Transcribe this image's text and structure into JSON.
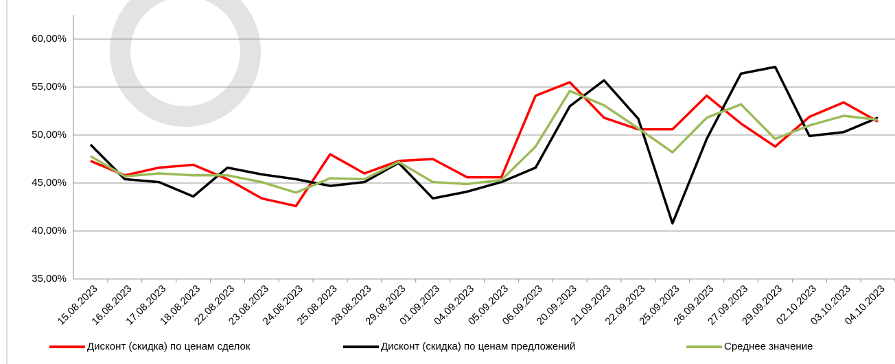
{
  "chart_data": {
    "type": "line",
    "categories": [
      "15.08.2023",
      "16.08.2023",
      "17.08.2023",
      "18.08.2023",
      "22.08.2023",
      "23.08.2023",
      "24.08.2023",
      "25.08.2023",
      "28.08.2023",
      "29.08.2023",
      "01.09.2023",
      "04.09.2023",
      "05.09.2023",
      "06.09.2023",
      "20.09.2023",
      "21.09.2023",
      "22.09.2023",
      "25.09.2023",
      "26.09.2023",
      "27.09.2023",
      "29.09.2023",
      "02.10.2023",
      "03.10.2023",
      "04.10.2023"
    ],
    "series": [
      {
        "name": "Дисконт (скидка) по ценам сделок",
        "color": "#ff0000",
        "values": [
          47.3,
          45.8,
          46.6,
          46.9,
          45.4,
          43.4,
          42.6,
          48.0,
          46.0,
          47.3,
          47.5,
          45.6,
          45.6,
          54.1,
          55.5,
          51.8,
          50.6,
          50.6,
          54.1,
          51.2,
          48.8,
          51.9,
          53.4,
          51.4
        ]
      },
      {
        "name": "Дисконт (скидка) по ценам предложений",
        "color": "#000000",
        "values": [
          49.0,
          45.4,
          45.1,
          43.6,
          46.6,
          45.9,
          45.4,
          44.7,
          45.1,
          47.1,
          43.4,
          44.1,
          45.1,
          46.6,
          53.0,
          55.7,
          51.7,
          40.8,
          49.6,
          56.4,
          57.1,
          49.9,
          50.3,
          51.8
        ]
      },
      {
        "name": "Среднее значение",
        "color": "#9bbb59",
        "values": [
          47.8,
          45.7,
          46.0,
          45.8,
          45.8,
          45.1,
          44.0,
          45.5,
          45.4,
          47.2,
          45.1,
          44.9,
          45.3,
          48.8,
          54.6,
          53.1,
          50.7,
          48.2,
          51.8,
          53.2,
          49.6,
          51.0,
          52.0,
          51.6
        ]
      }
    ],
    "ylim": [
      35,
      62.5
    ],
    "yticks": [
      {
        "value": 35,
        "label": "35,00%"
      },
      {
        "value": 40,
        "label": "40,00%"
      },
      {
        "value": 45,
        "label": "45,00%"
      },
      {
        "value": 50,
        "label": "50,00%"
      },
      {
        "value": 55,
        "label": "55,00%"
      },
      {
        "value": 60,
        "label": "60,00%"
      }
    ],
    "grid": true,
    "legend": "bottom"
  }
}
